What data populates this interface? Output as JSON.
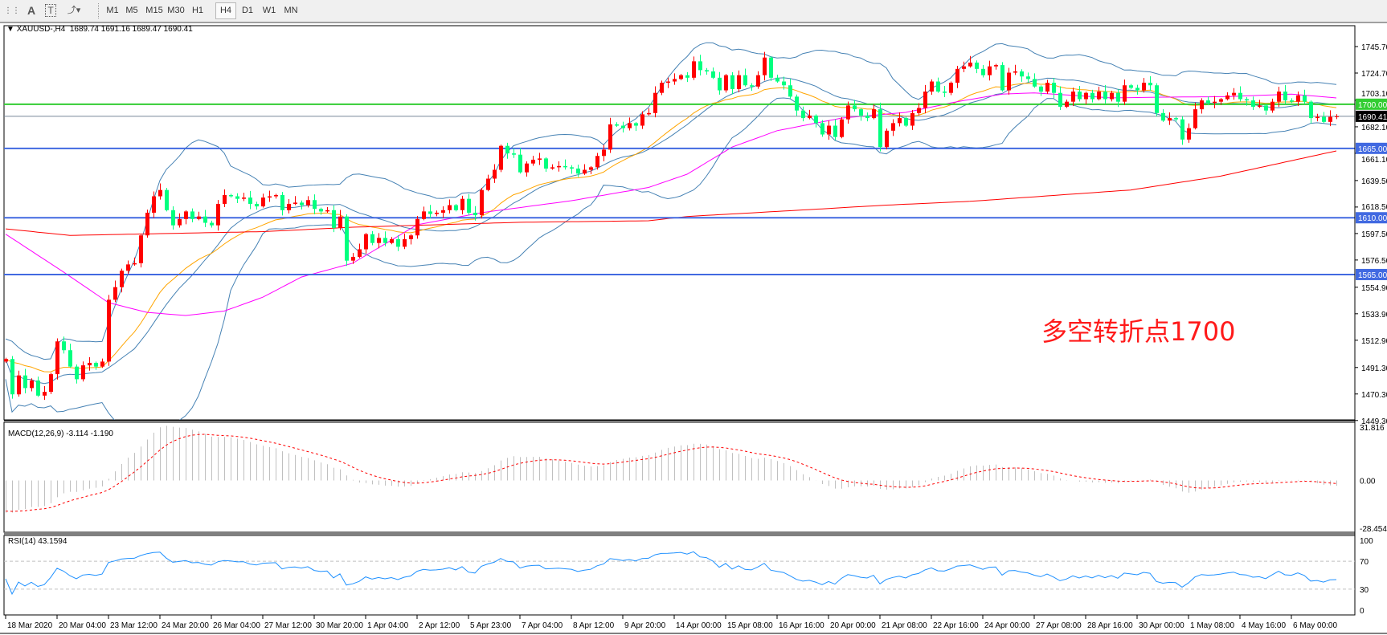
{
  "toolbar": {
    "icons": [
      "period-separators-icon",
      "text-icon",
      "text-label-icon",
      "arrows-icon"
    ],
    "timeframes": [
      "M1",
      "M5",
      "M15",
      "M30",
      "H1",
      "H4",
      "D1",
      "W1",
      "MN"
    ],
    "active_timeframe": "H4"
  },
  "header": {
    "symbol": "XAUUSD-,H4",
    "ohlc": "1689.74 1691.16 1689.47 1690.41"
  },
  "annotation": "多空转折点1700",
  "macd": {
    "label": "MACD(12,26,9) -3.114 -1.190",
    "axis": [
      "31.816",
      "0.00",
      "-28.454"
    ],
    "axis_values": [
      31.816,
      0,
      -28.454
    ]
  },
  "rsi": {
    "label": "RSI(14) 43.1594",
    "axis": [
      "100",
      "70",
      "30",
      "0"
    ],
    "levels": [
      70,
      30
    ]
  },
  "price_axis": [
    "1745.70",
    "1724.70",
    "1703.10",
    "1682.10",
    "1661.10",
    "1639.50",
    "1618.50",
    "1597.50",
    "1576.50",
    "1554.90",
    "1533.90",
    "1512.90",
    "1491.30",
    "1470.30",
    "1449.30"
  ],
  "levels": [
    {
      "price": 1700.0,
      "label": "1700.00",
      "color": "#32cd32"
    },
    {
      "price": 1665.0,
      "label": "1665.00",
      "color": "#4169e1"
    },
    {
      "price": 1610.0,
      "label": "1610.00",
      "color": "#4169e1"
    },
    {
      "price": 1565.0,
      "label": "1565.00",
      "color": "#4169e1"
    }
  ],
  "current_price": {
    "price": 1690.41,
    "label": "1690.41"
  },
  "colors": {
    "bull": "#ff0000",
    "bear": "#00ff7f",
    "bands": "#4682b4",
    "ma_fast": "#ffa500",
    "ma_mid": "#ff00ff",
    "ma_slow": "#ff0000",
    "macd_hist": "#c0c0c0",
    "macd_signal": "#ff0000",
    "rsi": "#1e90ff"
  },
  "time_axis": [
    "18 Mar 2020",
    "20 Mar 04:00",
    "23 Mar 12:00",
    "24 Mar 20:00",
    "26 Mar 04:00",
    "27 Mar 12:00",
    "30 Mar 20:00",
    "1 Apr 04:00",
    "2 Apr 12:00",
    "5 Apr 23:00",
    "7 Apr 04:00",
    "8 Apr 12:00",
    "9 Apr 20:00",
    "14 Apr 00:00",
    "15 Apr 08:00",
    "16 Apr 16:00",
    "20 Apr 00:00",
    "21 Apr 08:00",
    "22 Apr 16:00",
    "24 Apr 00:00",
    "27 Apr 08:00",
    "28 Apr 16:00",
    "30 Apr 00:00",
    "1 May 08:00",
    "4 May 16:00",
    "6 May 00:00"
  ],
  "chart_data": {
    "type": "candlestick",
    "symbol": "XAUUSD",
    "timeframe": "H4",
    "ylim": [
      1449.3,
      1760
    ],
    "first_open": 1496,
    "closes": [
      1498,
      1470,
      1485,
      1475,
      1481,
      1469,
      1472,
      1486,
      1512,
      1505,
      1492,
      1482,
      1493,
      1495,
      1492,
      1496,
      1545,
      1555,
      1568,
      1573,
      1574,
      1596,
      1614,
      1627,
      1632,
      1616,
      1604,
      1609,
      1615,
      1609,
      1611,
      1606,
      1604,
      1621,
      1628,
      1627,
      1625,
      1626,
      1621,
      1619,
      1626,
      1627,
      1628,
      1616,
      1621,
      1622,
      1620,
      1624,
      1617,
      1615,
      1616,
      1602,
      1611,
      1576,
      1579,
      1585,
      1597,
      1590,
      1594,
      1590,
      1593,
      1587,
      1593,
      1596,
      1609,
      1615,
      1613,
      1614,
      1616,
      1620,
      1616,
      1625,
      1614,
      1612,
      1632,
      1641,
      1648,
      1667,
      1661,
      1660,
      1646,
      1653,
      1656,
      1657,
      1649,
      1650,
      1651,
      1650,
      1649,
      1645,
      1648,
      1650,
      1659,
      1664,
      1684,
      1683,
      1681,
      1685,
      1683,
      1692,
      1693,
      1709,
      1717,
      1718,
      1720,
      1723,
      1721,
      1734,
      1727,
      1726,
      1721,
      1711,
      1723,
      1712,
      1723,
      1715,
      1714,
      1723,
      1737,
      1721,
      1718,
      1715,
      1706,
      1695,
      1689,
      1691,
      1685,
      1676,
      1683,
      1674,
      1688,
      1699,
      1696,
      1691,
      1689,
      1696,
      1666,
      1679,
      1685,
      1689,
      1683,
      1693,
      1697,
      1710,
      1718,
      1710,
      1709,
      1717,
      1728,
      1730,
      1733,
      1728,
      1723,
      1730,
      1731,
      1711,
      1725,
      1726,
      1722,
      1720,
      1714,
      1710,
      1717,
      1709,
      1698,
      1702,
      1710,
      1704,
      1709,
      1704,
      1710,
      1704,
      1709,
      1702,
      1715,
      1713,
      1711,
      1717,
      1715,
      1693,
      1687,
      1689,
      1688,
      1672,
      1681,
      1696,
      1703,
      1701,
      1702,
      1704,
      1707,
      1709,
      1704,
      1703,
      1698,
      1699,
      1695,
      1702,
      1710,
      1703,
      1702,
      1707,
      1702,
      1689,
      1690,
      1686,
      1690,
      1690.41
    ],
    "ma_mid_points": [
      [
        0,
        1597
      ],
      [
        9,
        1567
      ],
      [
        16,
        1542.7
      ],
      [
        22,
        1535
      ],
      [
        28,
        1532.5
      ],
      [
        34,
        1536
      ],
      [
        40,
        1547
      ],
      [
        46,
        1563
      ],
      [
        54,
        1574
      ],
      [
        64,
        1604.4
      ],
      [
        74,
        1614
      ],
      [
        88,
        1623.5
      ],
      [
        100,
        1634
      ],
      [
        106,
        1644.5
      ],
      [
        113,
        1666
      ],
      [
        120,
        1679
      ],
      [
        130,
        1689
      ],
      [
        140,
        1693.5
      ],
      [
        148,
        1702
      ],
      [
        155,
        1708
      ],
      [
        160,
        1709
      ],
      [
        172,
        1705
      ],
      [
        180,
        1705.6
      ],
      [
        190,
        1706
      ],
      [
        200,
        1708
      ],
      [
        207,
        1705
      ]
    ],
    "ma_slow_points": [
      [
        0,
        1601.2
      ],
      [
        10,
        1596
      ],
      [
        40,
        1599
      ],
      [
        54,
        1602.5
      ],
      [
        80,
        1606.4
      ],
      [
        100,
        1607.6
      ],
      [
        106,
        1611
      ],
      [
        120,
        1615
      ],
      [
        137,
        1620
      ],
      [
        150,
        1623
      ],
      [
        175,
        1632
      ],
      [
        189,
        1643
      ],
      [
        207,
        1663
      ]
    ]
  }
}
